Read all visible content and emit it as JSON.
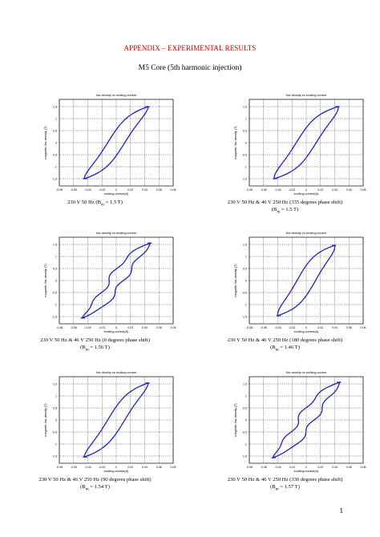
{
  "header": {
    "appendix_title": "APPENDIX – EXPERIMENTAL RESULTS",
    "subtitle": "M5 Core (5th harmonic injection)"
  },
  "page_number": "1",
  "style": {
    "curve_color": "#1f1fd0",
    "appendix_color": "#cc0000"
  },
  "chart_data": [
    {
      "type": "line",
      "title": "flux density vs exciting current",
      "xlabel": "exciting current(A)",
      "ylabel": "magnetic flux density (T)",
      "xticks": [
        "-0.08",
        "-0.06",
        "-0.04",
        "-0.02",
        "0",
        "0.02",
        "0.04",
        "0.06",
        "0.08"
      ],
      "yticks": [
        "1.5",
        "1",
        "0.5",
        "0",
        "-0.5",
        "-1",
        "-1.5"
      ],
      "xlim": [
        -0.08,
        0.08
      ],
      "ylim": [
        -1.8,
        1.8
      ],
      "grid": true,
      "caption_line1": "230 V 50 Hz (B",
      "caption_sub": "m",
      "caption_line1_end": "= 1.5 T)",
      "caption_line2": "",
      "loop": {
        "peak_x": 0.045,
        "peak_y": 1.5,
        "width": 0.024,
        "knee": 0.6,
        "shape": "smooth"
      }
    },
    {
      "type": "line",
      "title": "flux density vs exciting current",
      "xlabel": "exciting current(A)",
      "ylabel": "magnetic flux density (T)",
      "xticks": [
        "-0.08",
        "-0.06",
        "-0.04",
        "-0.02",
        "0",
        "0.02",
        "0.04",
        "0.06",
        "0.08"
      ],
      "yticks": [
        "1.5",
        "1",
        "0.5",
        "0",
        "-0.5",
        "-1",
        "-1.5"
      ],
      "xlim": [
        -0.08,
        0.08
      ],
      "ylim": [
        -1.8,
        1.8
      ],
      "grid": true,
      "caption_line1": "230 V 50 Hz & 46 V 250 Hz (335 degrees phase shift)",
      "caption_sub": "m",
      "caption_line2_start": "(B",
      "caption_line2": "= 1.5 T)",
      "loop": {
        "peak_x": 0.045,
        "peak_y": 1.5,
        "width": 0.028,
        "knee": 0.7,
        "shape": "smooth"
      }
    },
    {
      "type": "line",
      "title": "flux density vs exciting current",
      "xlabel": "exciting current(A)",
      "ylabel": "magnetic flux density (T)",
      "xticks": [
        "-0.08",
        "-0.06",
        "-0.04",
        "-0.02",
        "0",
        "0.02",
        "0.04",
        "0.06",
        "0.08"
      ],
      "yticks": [
        "1.5",
        "1",
        "0.5",
        "0",
        "-0.5",
        "-1",
        "-1.5"
      ],
      "xlim": [
        -0.08,
        0.08
      ],
      "ylim": [
        -1.8,
        1.8
      ],
      "grid": true,
      "caption_line1": "230 V 50 Hz & 46 V 250 Hz (0 degrees phase shift)",
      "caption_sub": "m",
      "caption_line2_start": "(B",
      "caption_line2": "= 1.56 T)",
      "loop": {
        "peak_x": 0.048,
        "peak_y": 1.56,
        "width": 0.02,
        "knee": 0.5,
        "shape": "kinked"
      }
    },
    {
      "type": "line",
      "title": "flux density vs exciting current",
      "xlabel": "exciting current(A)",
      "ylabel": "magnetic flux density (T)",
      "xticks": [
        "-0.08",
        "-0.06",
        "-0.04",
        "-0.02",
        "0",
        "0.02",
        "0.04",
        "0.06",
        "0.08"
      ],
      "yticks": [
        "1.5",
        "1",
        "0.5",
        "0",
        "-0.5",
        "-1",
        "-1.5"
      ],
      "xlim": [
        -0.08,
        0.08
      ],
      "ylim": [
        -1.8,
        1.8
      ],
      "grid": true,
      "caption_line1": "230 V 50 Hz & 46 V 250 Hz (180 degrees phase shift)",
      "caption_sub": "m",
      "caption_line2_start": "(B",
      "caption_line2": "= 1.46 T)",
      "loop": {
        "peak_x": 0.04,
        "peak_y": 1.46,
        "width": 0.026,
        "knee": 0.9,
        "shape": "smooth"
      }
    },
    {
      "type": "line",
      "title": "flux density vs exciting current",
      "xlabel": "exciting current(A)",
      "ylabel": "magnetic flux density (T)",
      "xticks": [
        "-0.08",
        "-0.06",
        "-0.04",
        "-0.02",
        "0",
        "0.02",
        "0.04",
        "0.06",
        "0.08"
      ],
      "yticks": [
        "1.5",
        "1",
        "0.5",
        "0",
        "-0.5",
        "-1",
        "-1.5"
      ],
      "xlim": [
        -0.08,
        0.08
      ],
      "ylim": [
        -1.8,
        1.8
      ],
      "grid": true,
      "caption_line1": "230 V 50 Hz & 46 V 250 Hz (90 degrees phase shift)",
      "caption_sub": "m",
      "caption_line2_start": "(B",
      "caption_line2": "= 1.54 T)",
      "loop": {
        "peak_x": 0.045,
        "peak_y": 1.54,
        "width": 0.024,
        "knee": 0.65,
        "shape": "smooth"
      }
    },
    {
      "type": "line",
      "title": "flux density vs exciting current",
      "xlabel": "exciting current(A)",
      "ylabel": "magnetic flux density (T)",
      "xticks": [
        "-0.08",
        "-0.06",
        "-0.04",
        "-0.02",
        "0",
        "0.02",
        "0.04",
        "0.06",
        "0.08"
      ],
      "yticks": [
        "1.5",
        "1",
        "0.5",
        "0",
        "-0.5",
        "-1",
        "-1.5"
      ],
      "xlim": [
        -0.08,
        0.08
      ],
      "ylim": [
        -1.8,
        1.8
      ],
      "grid": true,
      "caption_line1": "230 V 50 Hz & 46 V 250 Hz (330 degrees phase shift)",
      "caption_sub": "m",
      "caption_line2_start": "(B",
      "caption_line2": "= 1.57 T)",
      "loop": {
        "peak_x": 0.047,
        "peak_y": 1.57,
        "width": 0.022,
        "knee": 0.55,
        "shape": "kinked"
      }
    }
  ]
}
